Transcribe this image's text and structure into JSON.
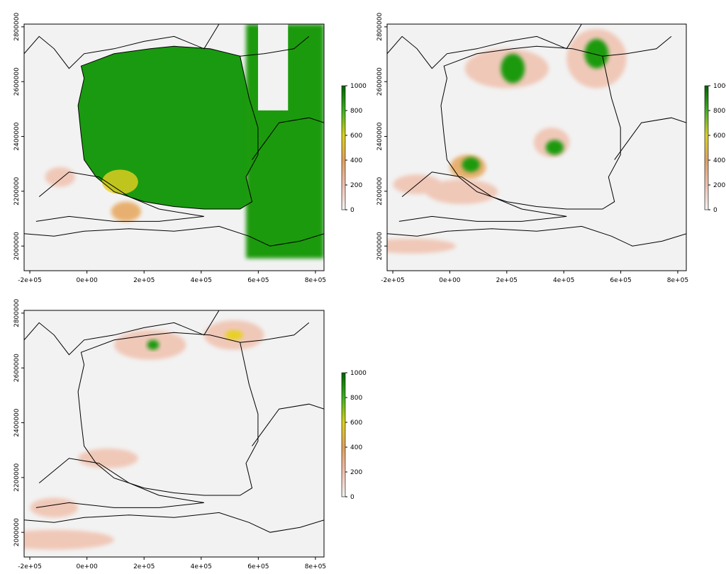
{
  "figure": {
    "panels": [
      {
        "id": "panel-1",
        "x_ticks": [
          "-2e+05",
          "0e+00",
          "2e+05",
          "4e+05",
          "6e+05",
          "8e+05"
        ],
        "y_ticks": [
          "2000000",
          "2200000",
          "2400000",
          "2600000",
          "2800000"
        ],
        "legend_ticks": [
          "0",
          "200",
          "400",
          "600",
          "800",
          "1000"
        ],
        "dominant_fill": "green"
      },
      {
        "id": "panel-2",
        "x_ticks": [
          "-2e+05",
          "0e+00",
          "2e+05",
          "4e+05",
          "6e+05",
          "8e+05"
        ],
        "y_ticks": [
          "2000000",
          "2200000",
          "2400000",
          "2600000",
          "2800000"
        ],
        "legend_ticks": [
          "0",
          "200",
          "400",
          "600",
          "800",
          "1000"
        ],
        "dominant_fill": "light"
      },
      {
        "id": "panel-3",
        "x_ticks": [
          "-2e+05",
          "0e+00",
          "2e+05",
          "4e+05",
          "6e+05",
          "8e+05"
        ],
        "y_ticks": [
          "2000000",
          "2200000",
          "2400000",
          "2600000",
          "2800000"
        ],
        "legend_ticks": [
          "0",
          "200",
          "400",
          "600",
          "800",
          "1000"
        ],
        "dominant_fill": "light"
      }
    ],
    "x_range": [
      -220000,
      830000
    ],
    "y_range": [
      1910000,
      2810000
    ],
    "legend_range": [
      0,
      1000
    ],
    "colors": {
      "background": "#f2f2f2",
      "low": "#f0c8b8",
      "mid": "#e8b070",
      "yellow": "#e8d020",
      "green": "#1a9a10",
      "dark_green": "#006400",
      "border": "#000000"
    }
  }
}
